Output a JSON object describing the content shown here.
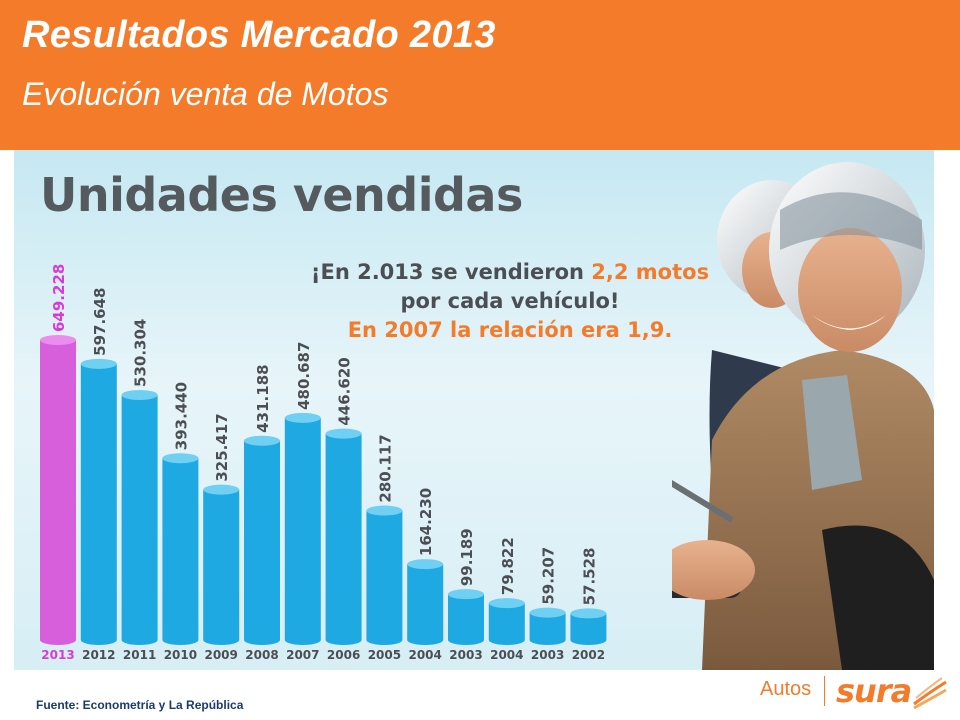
{
  "header": {
    "title": "Resultados Mercado 2013",
    "subtitle": "Evolución venta de Motos"
  },
  "panel": {
    "title": "Unidades vendidas",
    "callout_line1_prefix": "¡En 2.013 se vendieron ",
    "callout_line1_highlight": "2,2 motos",
    "callout_line2": "por cada vehículo!",
    "callout_line3": "En 2007 la relación era 1,9."
  },
  "source": "Fuente: Econometría y La República",
  "logo": {
    "left": "Autos",
    "brand": "sura"
  },
  "colors": {
    "header": "#F47B2A",
    "bar_highlight": "#D85FDB",
    "bar_default": "#1FA9E3",
    "label_highlight": "#D83AD9",
    "label_default": "#4b4f53"
  },
  "chart_data": {
    "type": "bar",
    "title": "Unidades vendidas",
    "categories": [
      "2013",
      "2012",
      "2011",
      "2010",
      "2009",
      "2008",
      "2007",
      "2006",
      "2005",
      "2004",
      "2003",
      "2004",
      "2003",
      "2002"
    ],
    "values": [
      649228,
      597648,
      530304,
      393440,
      325417,
      431188,
      480687,
      446620,
      280117,
      164230,
      99189,
      79822,
      59207,
      57528
    ],
    "value_labels": [
      "649.228",
      "597.648",
      "530.304",
      "393.440",
      "325.417",
      "431.188",
      "480.687",
      "446.620",
      "280.117",
      "164.230",
      "99.189",
      "79.822",
      "59.207",
      "57.528"
    ],
    "highlight_index": 0,
    "ylim": [
      0,
      649228
    ],
    "grid": false,
    "legend": "none"
  }
}
